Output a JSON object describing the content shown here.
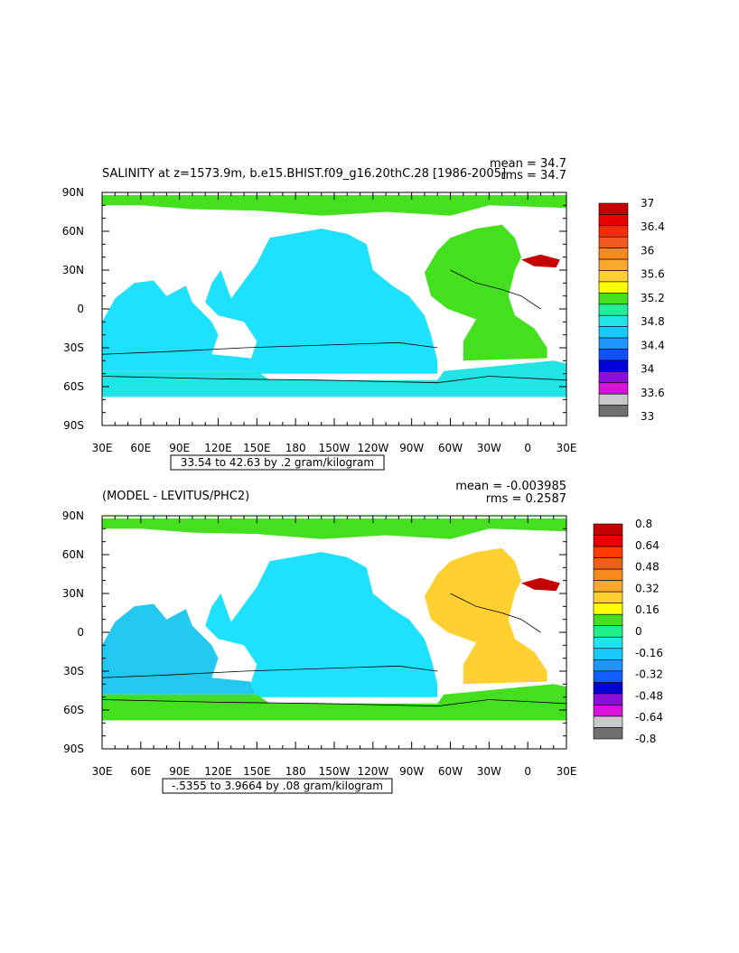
{
  "panels": [
    {
      "title": "SALINITY at z=1573.9m, b.e15.BHIST.f09_g16.20thC.28 [1986-2005]",
      "mean_text": "mean = 34.7",
      "rms_text": "rms = 34.7",
      "range_text": "33.54 to 42.63 by .2 gram/kilogram",
      "colorbar_labels": [
        "37",
        "36.4",
        "36",
        "35.6",
        "35.2",
        "34.8",
        "34.4",
        "34",
        "33.6",
        "33"
      ],
      "colorbar_colors": [
        "#c40000",
        "#e80000",
        "#ff2a00",
        "#f05a20",
        "#f58a1e",
        "#f9a830",
        "#ffd030",
        "#ffff00",
        "#44e020",
        "#22ee99",
        "#22e4e4",
        "#18c8ff",
        "#1e96ff",
        "#1050ff",
        "#0000d8",
        "#8a10d8",
        "#d812d8",
        "#c8c8c8",
        "#707070"
      ],
      "ocean_colors": {
        "pacific": "#1ee0ff",
        "atlantic": "#44e020",
        "southern": "#22e4e4",
        "arctic": "#44e020",
        "mediterranean": "#c40000",
        "north_atlantic_hot": "#ffd030"
      }
    },
    {
      "title": "(MODEL - LEVITUS/PHC2)",
      "mean_text": "mean = -0.003985",
      "rms_text": "rms = 0.2587",
      "range_text": "-.5355 to 3.9664 by .08 gram/kilogram",
      "colorbar_labels": [
        "0.8",
        "0.64",
        "0.48",
        "0.32",
        "0.16",
        "0",
        "-0.16",
        "-0.32",
        "-0.48",
        "-0.64",
        "-0.8"
      ],
      "colorbar_colors": [
        "#c40000",
        "#e80000",
        "#ff3a00",
        "#f06020",
        "#f58a1e",
        "#f9a830",
        "#ffd030",
        "#ffff00",
        "#44e020",
        "#22ee88",
        "#22e4e4",
        "#18c8ff",
        "#1e96ff",
        "#1060ff",
        "#0000d8",
        "#8a10d8",
        "#d812d8",
        "#c8c8c8",
        "#707070"
      ],
      "ocean_colors": {
        "pacific": "#1ee0ff",
        "atlantic": "#ffd030",
        "southern": "#44e020",
        "arctic": "#44e020",
        "mediterranean": "#c40000",
        "indian": "#22c8f0"
      }
    }
  ],
  "x_ticks": [
    "30E",
    "60E",
    "90E",
    "120E",
    "150E",
    "180",
    "150W",
    "120W",
    "90W",
    "60W",
    "30W",
    "0",
    "30E"
  ],
  "y_ticks": [
    "90N",
    "60N",
    "30N",
    "0",
    "30S",
    "60S",
    "90S"
  ]
}
